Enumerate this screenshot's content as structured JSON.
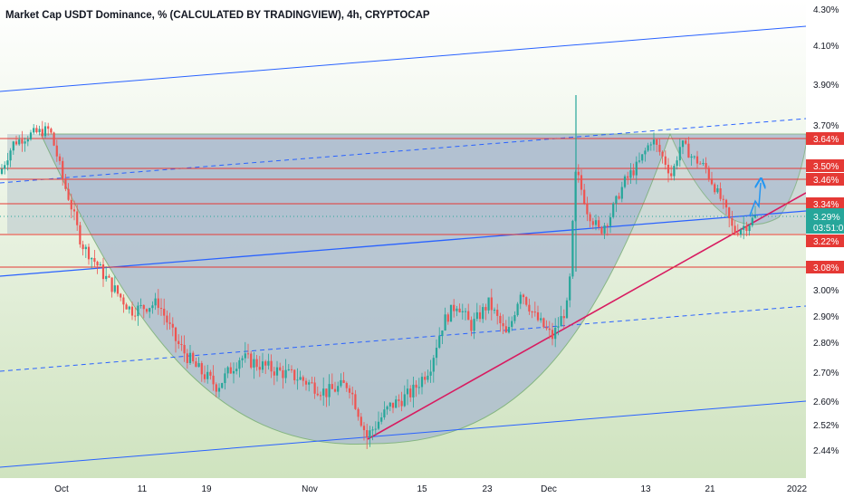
{
  "title": "Market Cap USDT Dominance, % (CALCULATED BY TRADINGVIEW), 4h, CRYPTOCAP",
  "colors": {
    "background": "#cfe3bf",
    "axis_bg": "#ffffff",
    "up_candle": "#26a69a",
    "down_candle": "#ef5350",
    "blue_line": "#2962ff",
    "red_line": "#e53935",
    "pink_trendline": "#d81b60",
    "cup_fill": "#a9b9cf",
    "arrow": "#2196f3",
    "current_price_badge": "#26a69a"
  },
  "price_axis": {
    "ticks": [
      "4.30%",
      "4.10%",
      "3.90%",
      "3.70%",
      "3.00%",
      "2.90%",
      "2.80%",
      "2.70%",
      "2.60%",
      "2.52%",
      "2.44%"
    ]
  },
  "level_badges": [
    "3.64%",
    "3.50%",
    "3.46%",
    "3.34%",
    "3.22%",
    "3.08%"
  ],
  "current_price": {
    "value": "3.29%",
    "countdown": "03:51:0"
  },
  "time_axis": {
    "ticks": [
      "Oct",
      "11",
      "19",
      "Nov",
      "15",
      "23",
      "Dec",
      "13",
      "21",
      "2022"
    ]
  },
  "chart_data": {
    "type": "candlestick",
    "title": "Market Cap USDT Dominance, % (CALCULATED BY TRADINGVIEW), 4h, CRYPTOCAP",
    "ylim": [
      2.4,
      4.3
    ],
    "y_unit": "%",
    "horizontal_levels": [
      3.64,
      3.5,
      3.46,
      3.34,
      3.22,
      3.08
    ],
    "current_price": 3.29,
    "price_path": [
      [
        0,
        3.48
      ],
      [
        15,
        3.62
      ],
      [
        35,
        3.66
      ],
      [
        55,
        3.68
      ],
      [
        72,
        3.42
      ],
      [
        90,
        3.18
      ],
      [
        115,
        3.05
      ],
      [
        145,
        2.92
      ],
      [
        175,
        2.95
      ],
      [
        195,
        2.8
      ],
      [
        215,
        2.72
      ],
      [
        240,
        2.65
      ],
      [
        265,
        2.75
      ],
      [
        300,
        2.71
      ],
      [
        330,
        2.68
      ],
      [
        360,
        2.63
      ],
      [
        385,
        2.66
      ],
      [
        405,
        2.48
      ],
      [
        430,
        2.58
      ],
      [
        455,
        2.63
      ],
      [
        475,
        2.72
      ],
      [
        490,
        2.88
      ],
      [
        505,
        2.95
      ],
      [
        520,
        2.86
      ],
      [
        540,
        2.95
      ],
      [
        560,
        2.82
      ],
      [
        575,
        3.0
      ],
      [
        590,
        2.9
      ],
      [
        610,
        2.82
      ],
      [
        628,
        2.95
      ],
      [
        636,
        3.5
      ],
      [
        648,
        3.32
      ],
      [
        662,
        3.23
      ],
      [
        675,
        3.3
      ],
      [
        690,
        3.45
      ],
      [
        705,
        3.52
      ],
      [
        720,
        3.64
      ],
      [
        732,
        3.55
      ],
      [
        742,
        3.47
      ],
      [
        752,
        3.62
      ],
      [
        765,
        3.55
      ],
      [
        780,
        3.5
      ],
      [
        795,
        3.37
      ],
      [
        810,
        3.23
      ],
      [
        825,
        3.26
      ],
      [
        835,
        3.29
      ]
    ],
    "patterns": [
      "cup-and-handle",
      "ascending channel",
      "rising trendline"
    ]
  }
}
